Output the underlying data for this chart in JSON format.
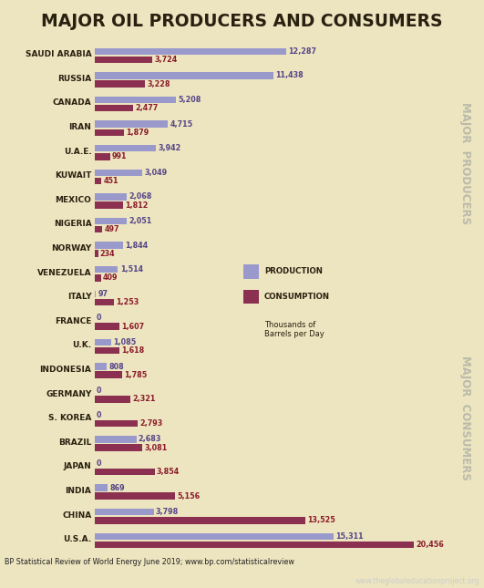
{
  "title": "MAJOR OIL PRODUCERS AND CONSUMERS",
  "title_bg": "#c8b860",
  "chart_bg_producers": "#ddd8b0",
  "chart_bg_consumers": "#ede5c0",
  "countries": [
    "SAUDI ARABIA",
    "RUSSIA",
    "CANADA",
    "IRAN",
    "U.A.E.",
    "KUWAIT",
    "MEXICO",
    "NIGERIA",
    "NORWAY",
    "VENEZUELA",
    "ITALY",
    "FRANCE",
    "U.K.",
    "INDONESIA",
    "GERMANY",
    "S. KOREA",
    "BRAZIL",
    "JAPAN",
    "INDIA",
    "CHINA",
    "U.S.A."
  ],
  "production": [
    12287,
    11438,
    5208,
    4715,
    3942,
    3049,
    2068,
    2051,
    1844,
    1514,
    97,
    0,
    1085,
    808,
    0,
    0,
    2683,
    0,
    869,
    3798,
    15311
  ],
  "consumption": [
    3724,
    3228,
    2477,
    1879,
    991,
    451,
    1812,
    497,
    234,
    409,
    1253,
    1607,
    1618,
    1785,
    2321,
    2793,
    3081,
    3854,
    5156,
    13525,
    20456
  ],
  "prod_color": "#9999cc",
  "cons_color": "#8b3050",
  "producers_count": 10,
  "consumers_count": 11,
  "major_producers_label": "MAJOR  PRODUCERS",
  "major_consumers_label": "MAJOR  CONSUMERS",
  "footnote": "BP Statistical Review of World Energy June 2019; www.bp.com/statisticalreview",
  "website": "www.theglobaleducationproject.org",
  "xlim": 22000,
  "figw": 5.31,
  "figh": 6.45,
  "dpi": 100
}
